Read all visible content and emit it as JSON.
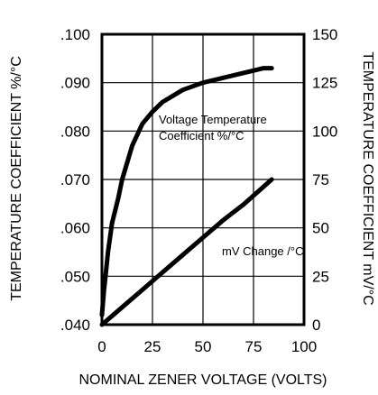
{
  "chart_data": {
    "type": "line",
    "title": "",
    "xlabel": "NOMINAL ZENER VOLTAGE (VOLTS)",
    "ylabel_left": "TEMPERATURE COEFFICIENT %/°C",
    "ylabel_right": "TEMPERATURE COEFFICIENT mV/°C",
    "xlim": [
      0,
      100
    ],
    "ylim_left": [
      0.04,
      0.1
    ],
    "ylim_right": [
      0,
      150
    ],
    "grid": true,
    "x_ticks": [
      "0",
      "25",
      "50",
      "75",
      "100"
    ],
    "y_left_ticks": [
      ".040",
      ".050",
      ".060",
      ".070",
      ".080",
      ".090",
      ".100"
    ],
    "y_right_ticks": [
      "0",
      "25",
      "50",
      "75",
      "100",
      "125",
      "150"
    ],
    "series": [
      {
        "name": "Voltage Temperature Coefficient %/°C",
        "axis": "left",
        "x": [
          0,
          1,
          2,
          3,
          5,
          8,
          10,
          15,
          20,
          25,
          30,
          40,
          50,
          60,
          70,
          80,
          84
        ],
        "y": [
          0.042,
          0.047,
          0.051,
          0.055,
          0.061,
          0.066,
          0.07,
          0.077,
          0.0815,
          0.084,
          0.086,
          0.0885,
          0.09,
          0.091,
          0.092,
          0.093,
          0.093
        ]
      },
      {
        "name": "mV Change /°C",
        "axis": "right",
        "x": [
          0,
          10,
          20,
          30,
          40,
          50,
          60,
          70,
          84
        ],
        "y": [
          0,
          9,
          18,
          27,
          36,
          45,
          54,
          62,
          75
        ]
      }
    ],
    "annotations": [
      {
        "text_lines": [
          "Voltage Temperature",
          "Coefficient %/°C"
        ]
      },
      {
        "text_lines": [
          "mV Change /°C"
        ]
      }
    ]
  }
}
